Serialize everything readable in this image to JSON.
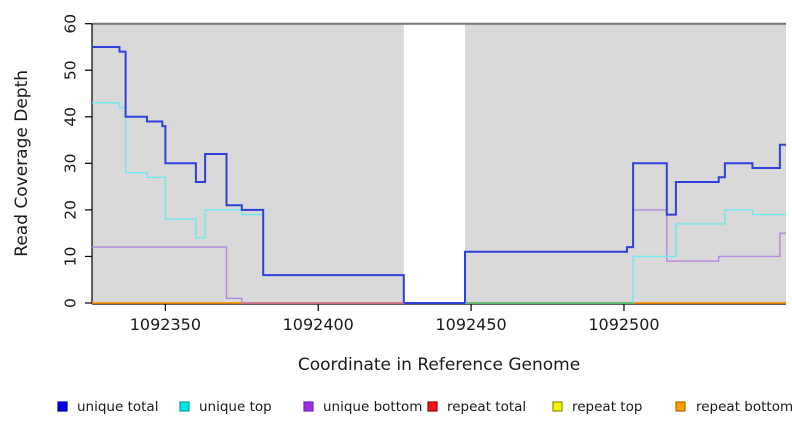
{
  "chart_data": {
    "type": "line",
    "subtype": "step-coverage",
    "title": "",
    "xlabel": "Coordinate in Reference Genome",
    "ylabel": "Read Coverage Depth",
    "xlim": [
      1092326,
      1092553
    ],
    "ylim": [
      0,
      60
    ],
    "xticks": [
      1092350,
      1092400,
      1092450,
      1092500
    ],
    "yticks": [
      0,
      10,
      20,
      30,
      40,
      50,
      60
    ],
    "grid": false,
    "background_bands": {
      "color": "#d9d9d9",
      "regions": [
        [
          1092326,
          1092428
        ],
        [
          1092448,
          1092553
        ]
      ],
      "gap_region": [
        1092428,
        1092448
      ],
      "top_border_color": "#757575"
    },
    "series": [
      {
        "name": "unique total",
        "color": "#2f3fd9",
        "width": 2.0,
        "steps": [
          [
            1092326,
            55
          ],
          [
            1092335,
            54
          ],
          [
            1092337,
            40
          ],
          [
            1092344,
            39
          ],
          [
            1092349,
            38
          ],
          [
            1092350,
            30
          ],
          [
            1092360,
            26
          ],
          [
            1092363,
            32
          ],
          [
            1092370,
            21
          ],
          [
            1092375,
            20
          ],
          [
            1092382,
            6
          ],
          [
            1092428,
            0
          ],
          [
            1092448,
            11
          ],
          [
            1092501,
            12
          ],
          [
            1092503,
            30
          ],
          [
            1092514,
            19
          ],
          [
            1092517,
            26
          ],
          [
            1092531,
            27
          ],
          [
            1092533,
            30
          ],
          [
            1092542,
            29
          ],
          [
            1092551,
            34
          ]
        ]
      },
      {
        "name": "unique top",
        "color": "#6feaf2",
        "width": 1.4,
        "steps": [
          [
            1092326,
            43
          ],
          [
            1092335,
            42
          ],
          [
            1092337,
            28
          ],
          [
            1092344,
            27
          ],
          [
            1092350,
            18
          ],
          [
            1092360,
            14
          ],
          [
            1092363,
            20
          ],
          [
            1092375,
            19
          ],
          [
            1092382,
            6
          ],
          [
            1092428,
            0
          ],
          [
            1092503,
            10
          ],
          [
            1092517,
            17
          ],
          [
            1092533,
            20
          ],
          [
            1092542,
            19
          ]
        ]
      },
      {
        "name": "unique bottom",
        "color": "#b687e0",
        "width": 1.4,
        "steps": [
          [
            1092326,
            12
          ],
          [
            1092370,
            1
          ],
          [
            1092375,
            0
          ],
          [
            1092448,
            11
          ],
          [
            1092501,
            12
          ],
          [
            1092503,
            20
          ],
          [
            1092514,
            9
          ],
          [
            1092531,
            10
          ],
          [
            1092551,
            15
          ]
        ]
      },
      {
        "name": "repeat total",
        "color": "#dd2222",
        "width": 1.2,
        "steps": [
          [
            1092326,
            0
          ]
        ]
      },
      {
        "name": "repeat top",
        "color": "#f0f000",
        "width": 1.2,
        "steps": [
          [
            1092326,
            0
          ]
        ]
      },
      {
        "name": "repeat bottom",
        "color": "#ff9100",
        "width": 1.6,
        "steps": [
          [
            1092326,
            0
          ]
        ]
      }
    ],
    "draw_order": [
      "repeat total",
      "repeat top",
      "repeat bottom",
      "unique bottom",
      "unique top",
      "unique total"
    ],
    "baseline_overrides": [
      {
        "from": 1092375,
        "to": 1092428,
        "color": "#d4718f"
      },
      {
        "from": 1092448,
        "to": 1092503,
        "color": "#55b96b"
      }
    ]
  },
  "legend": {
    "items": [
      {
        "label": "unique total",
        "fill": "#0000e6",
        "border": "#0000a0"
      },
      {
        "label": "unique top",
        "fill": "#00e6e6",
        "border": "#00a3a3"
      },
      {
        "label": "unique bottom",
        "fill": "#9d2fe3",
        "border": "#7a1fb5"
      },
      {
        "label": "repeat total",
        "fill": "#f01414",
        "border": "#a00000"
      },
      {
        "label": "repeat top",
        "fill": "#f5f500",
        "border": "#909000"
      },
      {
        "label": "repeat bottom",
        "fill": "#ff9d00",
        "border": "#b26b00"
      }
    ]
  }
}
